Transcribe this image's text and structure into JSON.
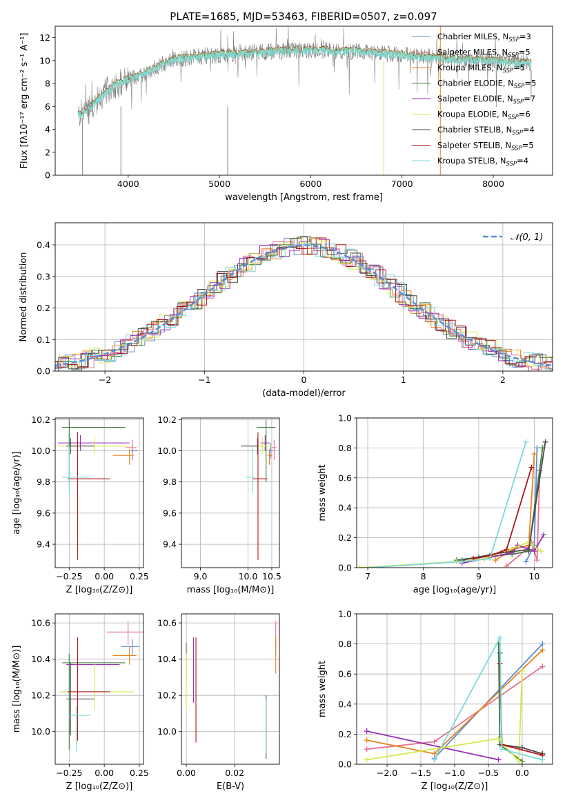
{
  "colors": {
    "chabrier_miles": "#5b8bd6",
    "salpeter_miles": "#e8708f",
    "kroupa_miles": "#e8821e",
    "chabrier_elodie": "#3c7a3c",
    "salpeter_elodie": "#9b2fb5",
    "kroupa_elodie": "#d7e84a",
    "chabrier_stelib": "#4a4a4a",
    "salpeter_stelib": "#b0141a",
    "kroupa_stelib": "#7dd8d8",
    "gauss": "#5b8bd6",
    "grid": "#b0b0b0"
  },
  "chart_data": [
    {
      "id": "spectrum",
      "type": "line",
      "title": "PLATE=1685, MJD=53463, FIBERID=0507, z=0.097",
      "xlabel": "wavelength [Angstrom, rest frame]",
      "ylabel": "Flux [fλ10⁻¹⁷ erg cm⁻² s⁻¹ A⁻¹]",
      "xlim": [
        3200,
        8650
      ],
      "ylim": [
        0,
        13
      ],
      "xticks": [
        4000,
        5000,
        6000,
        7000,
        8000
      ],
      "yticks": [
        0,
        2,
        4,
        6,
        8,
        10,
        12
      ],
      "grid": false,
      "legend_position": "top-right",
      "legend": [
        {
          "key": "chabrier_miles",
          "label": "Chabrier MILES, N",
          "sub": "SSP",
          "suffix": "=3"
        },
        {
          "key": "salpeter_miles",
          "label": "Salpeter MILES, N",
          "sub": "SSP",
          "suffix": "=5"
        },
        {
          "key": "kroupa_miles",
          "label": "Kroupa MILES, N",
          "sub": "SSP",
          "suffix": "=5"
        },
        {
          "key": "chabrier_elodie",
          "label": "Chabrier ELODIE, N",
          "sub": "SSP",
          "suffix": "=5"
        },
        {
          "key": "salpeter_elodie",
          "label": "Salpeter ELODIE, N",
          "sub": "SSP",
          "suffix": "=7"
        },
        {
          "key": "kroupa_elodie",
          "label": "Kroupa ELODIE, N",
          "sub": "SSP",
          "suffix": "=6"
        },
        {
          "key": "chabrier_stelib",
          "label": "Chabrier STELIB, N",
          "sub": "SSP",
          "suffix": "=4"
        },
        {
          "key": "salpeter_stelib",
          "label": "Salpeter STELIB, N",
          "sub": "SSP",
          "suffix": "=5"
        },
        {
          "key": "kroupa_stelib",
          "label": "Kroupa STELIB, N",
          "sub": "SSP",
          "suffix": "=4"
        }
      ],
      "continuum": [
        [
          3450,
          5.2
        ],
        [
          3600,
          6.0
        ],
        [
          3800,
          7.6
        ],
        [
          3950,
          8.3
        ],
        [
          4100,
          8.6
        ],
        [
          4300,
          9.4
        ],
        [
          4500,
          10.1
        ],
        [
          4800,
          10.4
        ],
        [
          5200,
          10.6
        ],
        [
          5600,
          10.8
        ],
        [
          6000,
          10.9
        ],
        [
          6500,
          10.8
        ],
        [
          7000,
          10.5
        ],
        [
          7500,
          10.2
        ],
        [
          8000,
          10.0
        ],
        [
          8400,
          9.8
        ]
      ],
      "data_line_color": "#808080",
      "model_line_color": "#7dd8d8"
    },
    {
      "id": "residuals",
      "type": "bar",
      "xlabel": "(data-model)/error",
      "ylabel": "Normed distribution",
      "xlim": [
        -2.5,
        2.5
      ],
      "ylim": [
        0,
        0.47
      ],
      "xticks": [
        -2,
        -1,
        0,
        1,
        2
      ],
      "yticks": [
        0.0,
        0.1,
        0.2,
        0.3,
        0.4
      ],
      "grid": true,
      "legend_position": "top-right",
      "legend_label": "𝒩(0, 1)",
      "bin_width": 0.1
    },
    {
      "id": "age_vs_Z",
      "type": "scatter",
      "xlabel": "Z [log₁₀(Z/Z⊙)]",
      "ylabel": "age  [log₁₀(age/yr)]",
      "xlim": [
        -0.35,
        0.28
      ],
      "ylim": [
        9.25,
        10.21
      ],
      "xticks": [
        -0.25,
        0.0,
        0.25
      ],
      "yticks": [
        9.4,
        9.6,
        9.8,
        10.0,
        10.2
      ],
      "grid": true,
      "points": [
        {
          "key": "chabrier_miles",
          "x": 0.2,
          "xerr": [
            0.01,
            0.04
          ],
          "y": 10.0,
          "yerr": [
            0.05,
            0.05
          ]
        },
        {
          "key": "salpeter_miles",
          "x": 0.2,
          "xerr": [
            0.05,
            0.03
          ],
          "y": 10.02,
          "yerr": [
            0.08,
            0.05
          ]
        },
        {
          "key": "kroupa_miles",
          "x": 0.18,
          "xerr": [
            0.12,
            0.03
          ],
          "y": 9.97,
          "yerr": [
            0.06,
            0.04
          ]
        },
        {
          "key": "chabrier_elodie",
          "x": -0.25,
          "xerr": [
            0.05,
            0.4
          ],
          "y": 10.15,
          "yerr": [
            0.35,
            0.05
          ]
        },
        {
          "key": "salpeter_elodie",
          "x": -0.17,
          "xerr": [
            0.16,
            0.35
          ],
          "y": 10.05,
          "yerr": [
            0.05,
            0.05
          ]
        },
        {
          "key": "kroupa_elodie",
          "x": -0.07,
          "xerr": [
            0.26,
            0.26
          ],
          "y": 10.03,
          "yerr": [
            0.05,
            0.06
          ]
        },
        {
          "key": "chabrier_stelib",
          "x": -0.24,
          "xerr": [
            0.03,
            0.17
          ],
          "y": 10.03,
          "yerr": [
            0.05,
            0.05
          ]
        },
        {
          "key": "salpeter_stelib",
          "x": -0.19,
          "xerr": [
            0.07,
            0.23
          ],
          "y": 9.82,
          "yerr": [
            0.52,
            0.3
          ]
        },
        {
          "key": "kroupa_stelib",
          "x": -0.25,
          "xerr": [
            0.05,
            0.14
          ],
          "y": 9.83,
          "yerr": [
            0.1,
            0.2
          ]
        }
      ]
    },
    {
      "id": "age_vs_mass",
      "type": "scatter",
      "xlabel": "mass [log₁₀(M/M⊙)]",
      "ylabel": "",
      "xlim": [
        8.6,
        10.66
      ],
      "ylim": [
        9.25,
        10.21
      ],
      "xticks": [
        9.0,
        10.0,
        10.5
      ],
      "yticks": [
        9.4,
        9.6,
        9.8,
        10.0,
        10.2
      ],
      "grid": true,
      "points": [
        {
          "key": "chabrier_miles",
          "x": 10.48,
          "xerr": [
            0.04,
            0.04
          ],
          "y": 10.0,
          "yerr": [
            0.05,
            0.05
          ]
        },
        {
          "key": "salpeter_miles",
          "x": 10.55,
          "xerr": [
            0.05,
            0.05
          ],
          "y": 10.02,
          "yerr": [
            0.08,
            0.05
          ]
        },
        {
          "key": "kroupa_miles",
          "x": 10.45,
          "xerr": [
            0.04,
            0.06
          ],
          "y": 9.97,
          "yerr": [
            0.06,
            0.04
          ]
        },
        {
          "key": "chabrier_elodie",
          "x": 10.38,
          "xerr": [
            0.2,
            0.2
          ],
          "y": 10.15,
          "yerr": [
            0.35,
            0.05
          ]
        },
        {
          "key": "salpeter_elodie",
          "x": 10.36,
          "xerr": [
            0.1,
            0.1
          ],
          "y": 10.05,
          "yerr": [
            0.05,
            0.05
          ]
        },
        {
          "key": "kroupa_elodie",
          "x": 10.3,
          "xerr": [
            0.15,
            0.2
          ],
          "y": 10.03,
          "yerr": [
            0.05,
            0.06
          ]
        },
        {
          "key": "chabrier_stelib",
          "x": 10.2,
          "xerr": [
            0.35,
            0.02
          ],
          "y": 10.03,
          "yerr": [
            0.05,
            0.05
          ]
        },
        {
          "key": "salpeter_stelib",
          "x": 10.21,
          "xerr": [
            0.12,
            0.2
          ],
          "y": 9.82,
          "yerr": [
            0.52,
            0.3
          ]
        },
        {
          "key": "kroupa_stelib",
          "x": 10.1,
          "xerr": [
            0.15,
            0.05
          ],
          "y": 9.83,
          "yerr": [
            0.1,
            0.2
          ]
        }
      ]
    },
    {
      "id": "weight_vs_age",
      "type": "line",
      "xlabel": "age  [log₁₀(age/yr)]",
      "ylabel": "mass weight",
      "xlim": [
        6.8,
        10.33
      ],
      "ylim": [
        0.0,
        1.0
      ],
      "xticks": [
        7,
        8,
        9,
        10
      ],
      "yticks": [
        0.0,
        0.2,
        0.4,
        0.6,
        0.8,
        1.0
      ],
      "grid": true,
      "series": [
        {
          "key": "chabrier_miles",
          "x": [
            9.85,
            10.0,
            10.05
          ],
          "y": [
            0.04,
            0.15,
            0.8
          ]
        },
        {
          "key": "salpeter_miles",
          "x": [
            9.5,
            9.85,
            9.95,
            10.05,
            10.1
          ],
          "y": [
            0.01,
            0.12,
            0.17,
            0.05,
            0.65
          ]
        },
        {
          "key": "kroupa_miles",
          "x": [
            9.3,
            9.6,
            9.9,
            10.0
          ],
          "y": [
            0.05,
            0.12,
            0.15,
            0.76
          ]
        },
        {
          "key": "chabrier_elodie",
          "x": [
            8.6,
            9.0,
            9.6,
            9.9,
            10.15
          ],
          "y": [
            0.05,
            0.07,
            0.09,
            0.11,
            0.8
          ]
        },
        {
          "key": "salpeter_elodie",
          "x": [
            8.7,
            9.1,
            9.6,
            9.7,
            10.0,
            10.17
          ],
          "y": [
            0.03,
            0.06,
            0.1,
            0.15,
            0.11,
            0.22
          ]
        },
        {
          "key": "kroupa_elodie",
          "x": [
            6.85,
            8.6,
            9.1,
            9.9,
            10.12
          ],
          "y": [
            0.0,
            0.04,
            0.06,
            0.17,
            0.11
          ]
        },
        {
          "key": "chabrier_stelib",
          "x": [
            8.7,
            9.4,
            9.9,
            10.2
          ],
          "y": [
            0.05,
            0.1,
            0.12,
            0.84
          ]
        },
        {
          "key": "salpeter_stelib",
          "x": [
            8.9,
            9.2,
            9.5,
            9.95
          ],
          "y": [
            0.06,
            0.08,
            0.12,
            0.67
          ]
        },
        {
          "key": "kroupa_stelib",
          "x": [
            7.0,
            8.7,
            9.2,
            9.85
          ],
          "y": [
            0.0,
            0.04,
            0.06,
            0.84
          ]
        }
      ]
    },
    {
      "id": "mass_vs_Z",
      "type": "scatter",
      "xlabel": "Z [log₁₀(Z/Z⊙)]",
      "ylabel": "mass [log₁₀(M/M⊙)]",
      "xlim": [
        -0.35,
        0.28
      ],
      "ylim": [
        9.82,
        10.65
      ],
      "xticks": [
        -0.25,
        0.0,
        0.25
      ],
      "yticks": [
        10.0,
        10.2,
        10.4,
        10.6
      ],
      "grid": true,
      "points": [
        {
          "key": "chabrier_miles",
          "x": 0.2,
          "xerr": [
            0.08,
            0.05
          ],
          "y": 10.47,
          "yerr": [
            0.05,
            0.04
          ]
        },
        {
          "key": "salpeter_miles",
          "x": 0.17,
          "xerr": [
            0.15,
            0.12
          ],
          "y": 10.55,
          "yerr": [
            0.07,
            0.06
          ]
        },
        {
          "key": "kroupa_miles",
          "x": 0.18,
          "xerr": [
            0.12,
            0.05
          ],
          "y": 10.42,
          "yerr": [
            0.05,
            0.05
          ]
        },
        {
          "key": "chabrier_elodie",
          "x": -0.25,
          "xerr": [
            0.05,
            0.4
          ],
          "y": 10.38,
          "yerr": [
            0.48,
            0.05
          ]
        },
        {
          "key": "salpeter_elodie",
          "x": -0.19,
          "xerr": [
            0.08,
            0.3
          ],
          "y": 10.37,
          "yerr": [
            0.1,
            0.15
          ]
        },
        {
          "key": "kroupa_elodie",
          "x": -0.07,
          "xerr": [
            0.25,
            0.28
          ],
          "y": 10.22,
          "yerr": [
            0.1,
            0.16
          ]
        },
        {
          "key": "chabrier_stelib",
          "x": -0.24,
          "xerr": [
            0.03,
            0.17
          ],
          "y": 10.18,
          "yerr": [
            0.2,
            0.2
          ]
        },
        {
          "key": "salpeter_stelib",
          "x": -0.19,
          "xerr": [
            0.07,
            0.23
          ],
          "y": 10.22,
          "yerr": [
            0.27,
            0.3
          ]
        },
        {
          "key": "kroupa_stelib",
          "x": -0.2,
          "xerr": [
            0.05,
            0.1
          ],
          "y": 10.09,
          "yerr": [
            0.2,
            0.05
          ]
        }
      ]
    },
    {
      "id": "mass_vs_ebv",
      "type": "scatter",
      "xlabel": "E(B-V)",
      "ylabel": "",
      "xlim": [
        -0.002,
        0.0385
      ],
      "ylim": [
        9.82,
        10.65
      ],
      "xticks": [
        0.0,
        0.02
      ],
      "yticks": [
        10.0,
        10.2,
        10.4,
        10.6
      ],
      "grid": true,
      "points": [
        {
          "key": "chabrier_miles",
          "x": 0.037,
          "xerr": [
            0,
            0
          ],
          "y": 10.47,
          "yerr": [
            0.05,
            0.04
          ]
        },
        {
          "key": "salpeter_miles",
          "x": 0.037,
          "xerr": [
            0,
            0
          ],
          "y": 10.55,
          "yerr": [
            0.07,
            0.06
          ]
        },
        {
          "key": "kroupa_miles",
          "x": 0.037,
          "xerr": [
            0,
            0
          ],
          "y": 10.42,
          "yerr": [
            0.1,
            0.1
          ]
        },
        {
          "key": "chabrier_elodie",
          "x": 0.0,
          "xerr": [
            0,
            0
          ],
          "y": 10.38,
          "yerr": [
            0.1,
            0.11
          ]
        },
        {
          "key": "salpeter_elodie",
          "x": 0.003,
          "xerr": [
            0,
            0
          ],
          "y": 10.36,
          "yerr": [
            0.2,
            0.16
          ]
        },
        {
          "key": "kroupa_elodie",
          "x": 0.0,
          "xerr": [
            0,
            0
          ],
          "y": 10.27,
          "yerr": [
            0.15,
            0.16
          ]
        },
        {
          "key": "chabrier_stelib",
          "x": 0.033,
          "xerr": [
            0,
            0
          ],
          "y": 10.05,
          "yerr": [
            0.2,
            0.15
          ]
        },
        {
          "key": "salpeter_stelib",
          "x": 0.004,
          "xerr": [
            0,
            0
          ],
          "y": 10.22,
          "yerr": [
            0.28,
            0.3
          ]
        },
        {
          "key": "kroupa_stelib",
          "x": 0.033,
          "xerr": [
            0,
            0
          ],
          "y": 10.03,
          "yerr": [
            0.15,
            0.15
          ]
        }
      ]
    },
    {
      "id": "weight_vs_Z",
      "type": "line",
      "xlabel": "Z [log₁₀(Z/Z⊙)]",
      "ylabel": "mass weight",
      "xlim": [
        -2.45,
        0.45
      ],
      "ylim": [
        0.0,
        1.0
      ],
      "xticks": [
        -2.0,
        -1.5,
        -1.0,
        -0.5,
        0.0
      ],
      "yticks": [
        0.0,
        0.2,
        0.4,
        0.6,
        0.8,
        1.0
      ],
      "grid": true,
      "series": [
        {
          "key": "chabrier_miles",
          "x": [
            -1.3,
            0.3
          ],
          "y": [
            0.04,
            0.8
          ]
        },
        {
          "key": "salpeter_miles",
          "x": [
            -2.3,
            -1.3,
            0.3
          ],
          "y": [
            0.1,
            0.15,
            0.65
          ]
        },
        {
          "key": "kroupa_miles",
          "x": [
            -2.3,
            -1.3,
            0.3
          ],
          "y": [
            0.16,
            0.07,
            0.76
          ]
        },
        {
          "key": "chabrier_elodie",
          "x": [
            -0.35,
            -0.33,
            0.0
          ],
          "y": [
            0.8,
            0.13,
            0.02
          ]
        },
        {
          "key": "salpeter_elodie",
          "x": [
            -2.3,
            -0.35
          ],
          "y": [
            0.22,
            0.03
          ]
        },
        {
          "key": "kroupa_elodie",
          "x": [
            -2.3,
            -0.35,
            -0.05,
            0.0
          ],
          "y": [
            0.03,
            0.17,
            0.02,
            0.62
          ]
        },
        {
          "key": "chabrier_stelib",
          "x": [
            -0.33,
            -0.3,
            0.0,
            0.3
          ],
          "y": [
            0.74,
            0.13,
            0.11,
            0.07
          ]
        },
        {
          "key": "salpeter_stelib",
          "x": [
            -0.33,
            -0.3,
            0.3
          ],
          "y": [
            0.67,
            0.13,
            0.06
          ]
        },
        {
          "key": "kroupa_stelib",
          "x": [
            -1.3,
            -0.33,
            -0.3,
            0.3
          ],
          "y": [
            0.03,
            0.84,
            0.1,
            0.03
          ]
        }
      ]
    }
  ]
}
